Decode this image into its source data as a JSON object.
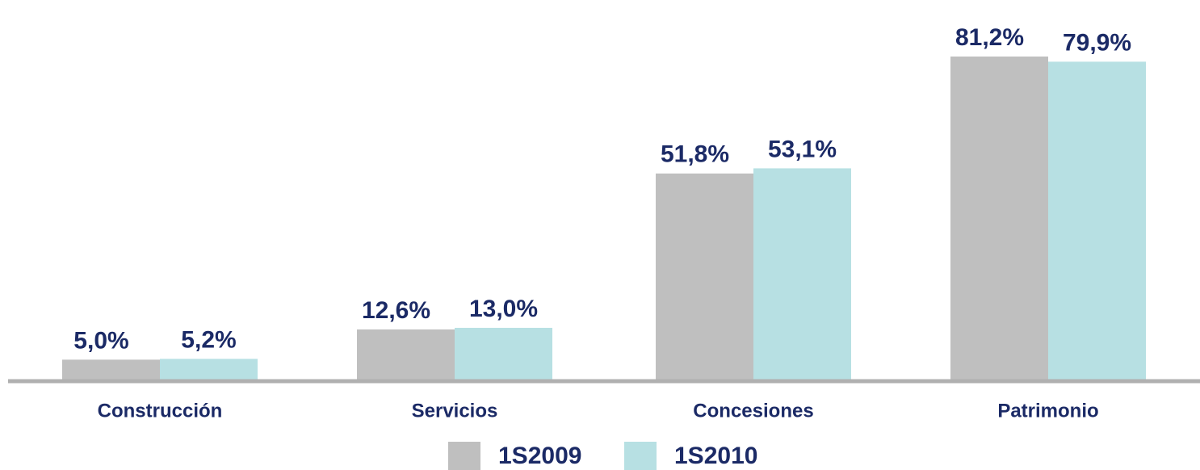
{
  "chart_data": {
    "type": "bar",
    "categories": [
      "Construcción",
      "Servicios",
      "Concesiones",
      "Patrimonio"
    ],
    "series": [
      {
        "name": "1S2009",
        "color": "#bfbfbf",
        "values": [
          5.0,
          12.6,
          51.8,
          81.2
        ],
        "value_labels": [
          "5,0%",
          "12,6%",
          "51,8%",
          "81,2%"
        ]
      },
      {
        "name": "1S2010",
        "color": "#b7e0e3",
        "values": [
          5.2,
          13.0,
          53.1,
          79.9
        ],
        "value_labels": [
          "5,2%",
          "13,0%",
          "53,1%",
          "79,9%"
        ]
      }
    ]
  }
}
